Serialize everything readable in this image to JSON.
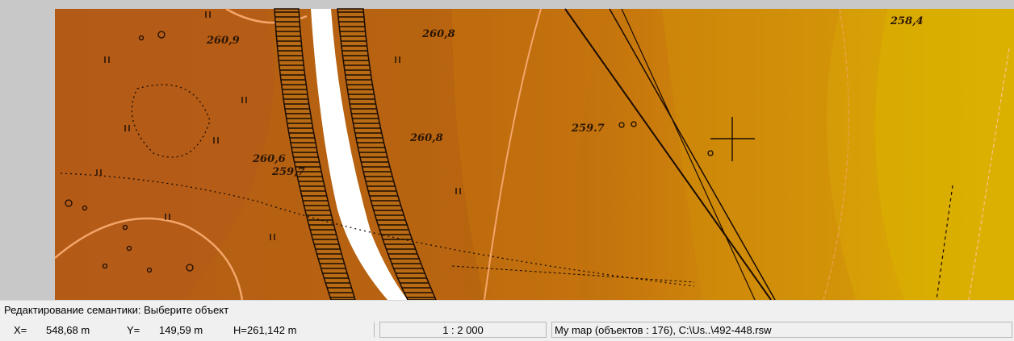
{
  "map": {
    "elevation_labels": [
      "260,9",
      "260,8",
      "258,4",
      "259.7",
      "260,6",
      "259,7",
      "260,8"
    ],
    "colors": {
      "frame": "#c8c8c8",
      "dark_zone": "#b75e14",
      "mid_zone": "#c26e10",
      "light_zone": "#d4960a",
      "yellow_zone": "#ddb000",
      "contour": "#f5a86a",
      "linework": "#1a0c02"
    }
  },
  "status": {
    "message": "Редактирование семантики: Выберите объект",
    "x_label": "X=",
    "x_value": "548,68 m",
    "y_label": "Y=",
    "y_value": "149,59 m",
    "h_value": "H=261,142 m",
    "scale": "1 : 2 000",
    "map_info": "My map   (объектов : 176), C:\\Us..\\492-448.rsw"
  }
}
